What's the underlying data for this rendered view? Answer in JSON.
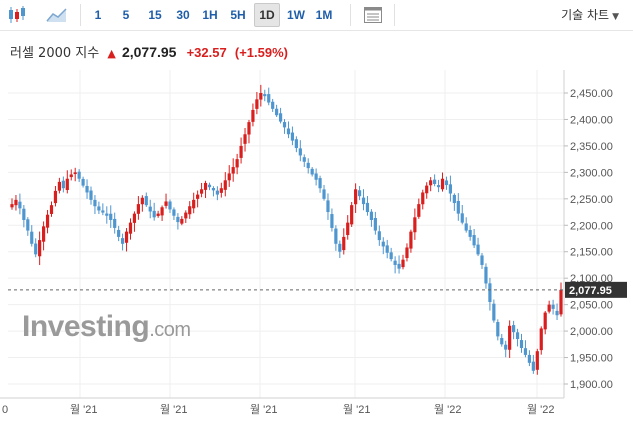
{
  "toolbar": {
    "chart_type_icons": [
      "candlestick-icon",
      "area-chart-icon"
    ],
    "timeframes": [
      "1",
      "5",
      "15",
      "30",
      "1H",
      "5H",
      "1D",
      "1W",
      "1M"
    ],
    "active_timeframe": "1D",
    "settings_icon": "table-icon",
    "tech_chart_label": "기술 차트"
  },
  "header": {
    "name": "러셀 2000 지수",
    "direction": "up",
    "price": "2,077.95",
    "change": "+32.57",
    "change_pct": "(+1.59%)"
  },
  "watermark": {
    "brand": "Investing",
    "suffix": ".com"
  },
  "colors": {
    "up": "#d91e1e",
    "down": "#4f96cf",
    "link": "#1f5ea8"
  },
  "chart_data": {
    "type": "candlestick",
    "y_ticks": [
      "2,450.00",
      "2,400.00",
      "2,350.00",
      "2,300.00",
      "2,250.00",
      "2,200.00",
      "2,150.00",
      "2,100.00",
      "2,050.00",
      "2,000.00",
      "1,950.00",
      "1,900.00"
    ],
    "ylim": [
      1885,
      2470
    ],
    "x_tick_labels": [
      "0",
      "월 '21",
      "월 '21",
      "월 '21",
      "월 '21",
      "월 '22",
      "월 '22"
    ],
    "current_price": 2077.95,
    "current_price_label": "2,077.95",
    "closes": [
      2240,
      2248,
      2232,
      2210,
      2190,
      2165,
      2145,
      2172,
      2198,
      2220,
      2238,
      2265,
      2282,
      2270,
      2288,
      2296,
      2300,
      2288,
      2275,
      2262,
      2248,
      2236,
      2228,
      2224,
      2218,
      2210,
      2195,
      2178,
      2165,
      2188,
      2205,
      2222,
      2240,
      2252,
      2238,
      2226,
      2215,
      2222,
      2234,
      2245,
      2230,
      2218,
      2206,
      2212,
      2224,
      2236,
      2248,
      2258,
      2268,
      2280,
      2272,
      2266,
      2258,
      2270,
      2285,
      2298,
      2310,
      2325,
      2350,
      2372,
      2395,
      2418,
      2438,
      2450,
      2444,
      2432,
      2420,
      2408,
      2396,
      2385,
      2372,
      2360,
      2346,
      2332,
      2320,
      2308,
      2296,
      2286,
      2270,
      2250,
      2225,
      2195,
      2165,
      2150,
      2178,
      2205,
      2238,
      2268,
      2255,
      2240,
      2225,
      2210,
      2190,
      2172,
      2160,
      2148,
      2136,
      2125,
      2118,
      2135,
      2158,
      2188,
      2215,
      2240,
      2262,
      2275,
      2285,
      2278,
      2272,
      2288,
      2276,
      2260,
      2242,
      2222,
      2205,
      2190,
      2178,
      2162,
      2145,
      2125,
      2090,
      2055,
      2020,
      1990,
      1975,
      1965,
      2010,
      1998,
      1985,
      1968,
      1955,
      1940,
      1925,
      1962,
      2005,
      2035,
      2050,
      2042,
      2030,
      2078
    ]
  }
}
